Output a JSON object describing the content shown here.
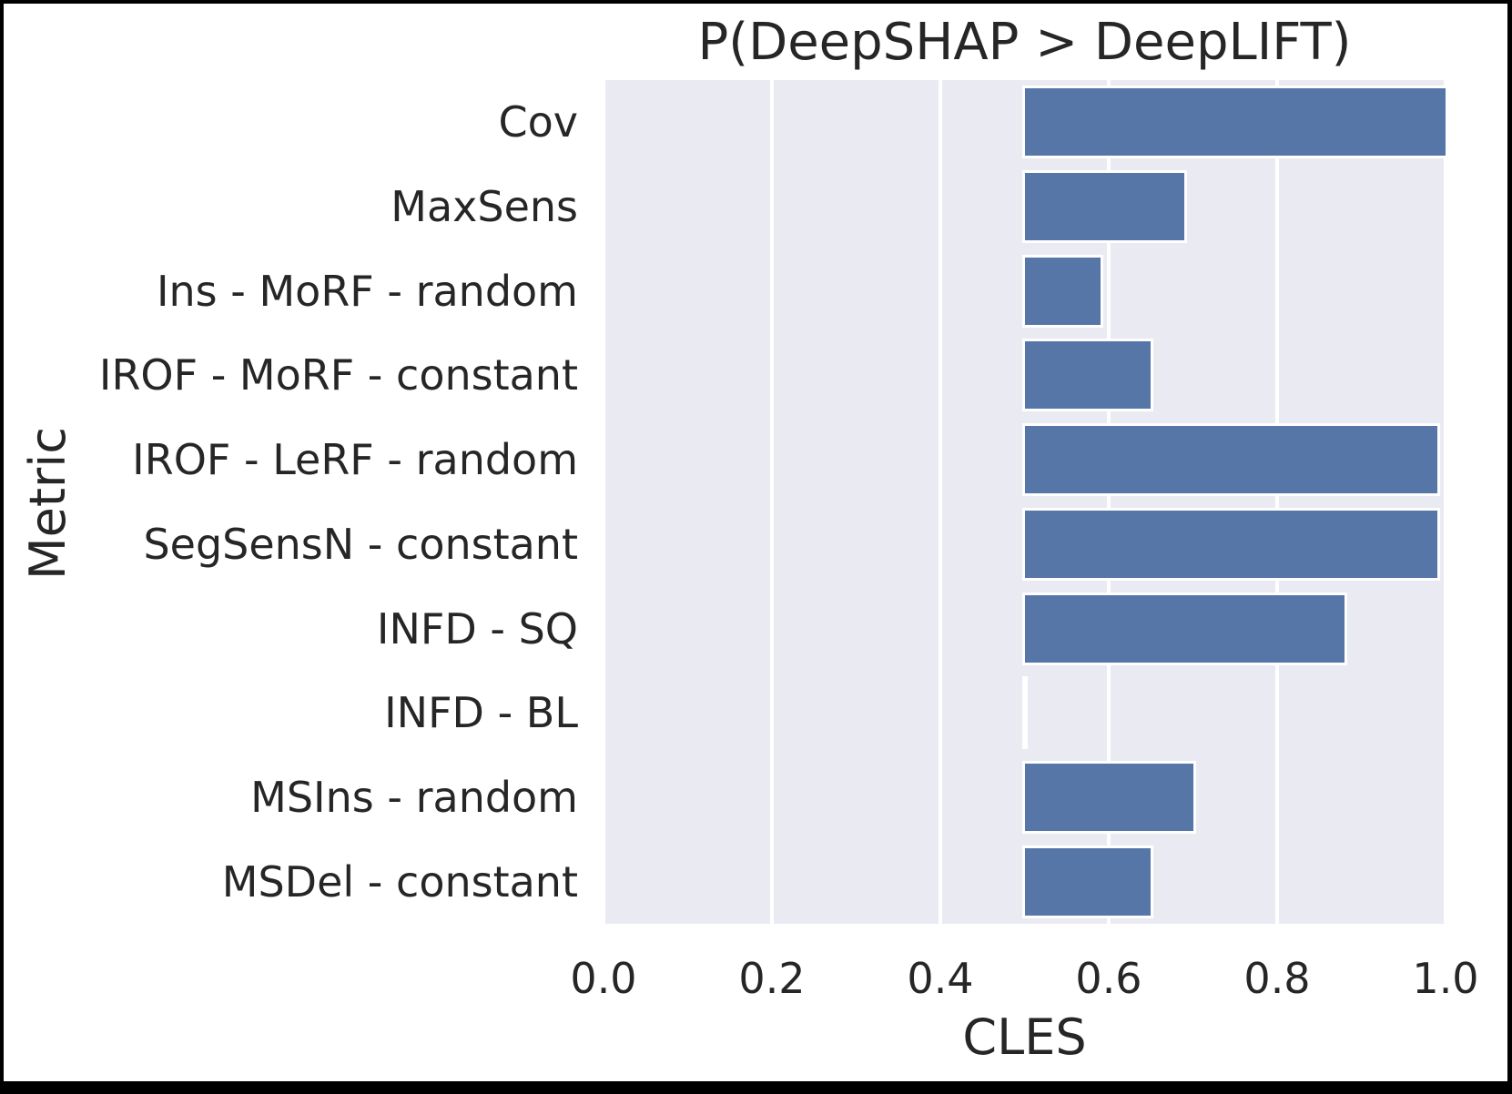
{
  "chart_data": {
    "type": "bar",
    "orientation": "horizontal",
    "title": "P(DeepSHAP > DeepLIFT)",
    "xlabel": "CLES",
    "ylabel": "Metric",
    "categories": [
      "Cov",
      "MaxSens",
      "Ins - MoRF - random",
      "IROF - MoRF - constant",
      "IROF - LeRF - random",
      "SegSensN - constant",
      "INFD - SQ",
      "INFD - BL",
      "MSIns - random",
      "MSDel - constant"
    ],
    "values": [
      1.0,
      0.69,
      0.59,
      0.65,
      0.99,
      0.99,
      0.88,
      0.5,
      0.7,
      0.65
    ],
    "bar_start": 0.5,
    "xlim": [
      0.0,
      1.0
    ],
    "xtick_labels": [
      "0.0",
      "0.2",
      "0.4",
      "0.6",
      "0.8",
      "1.0"
    ],
    "xticks": [
      0.0,
      0.2,
      0.4,
      0.6,
      0.8,
      1.0
    ],
    "grid": "white vertical gridlines on light lavender background",
    "legend": "none",
    "colors": {
      "bar": "#5776a8",
      "plot_background": "#eaeaf2",
      "gridline": "#ffffff",
      "text": "#262626",
      "figure_border": "#000000"
    }
  }
}
